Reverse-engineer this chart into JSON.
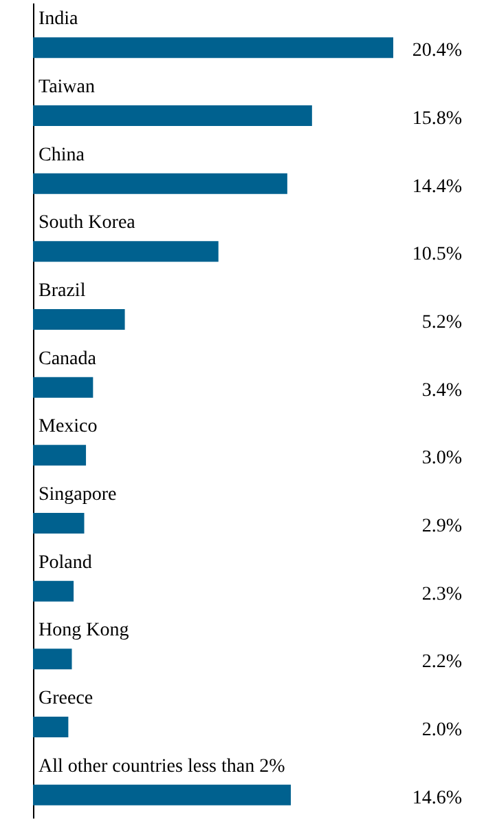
{
  "chart_data": {
    "type": "bar",
    "orientation": "horizontal",
    "categories": [
      "India",
      "Taiwan",
      "China",
      "South Korea",
      "Brazil",
      "Canada",
      "Mexico",
      "Singapore",
      "Poland",
      "Hong Kong",
      "Greece",
      "All other countries less than 2%"
    ],
    "values": [
      20.4,
      15.8,
      14.4,
      10.5,
      5.2,
      3.4,
      3.0,
      2.9,
      2.3,
      2.2,
      2.0,
      14.6
    ],
    "value_labels": [
      "20.4%",
      "15.8%",
      "14.4%",
      "10.5%",
      "5.2%",
      "3.4%",
      "3.0%",
      "2.9%",
      "2.3%",
      "2.2%",
      "2.0%",
      "14.6%"
    ],
    "color": "#00618f"
  }
}
